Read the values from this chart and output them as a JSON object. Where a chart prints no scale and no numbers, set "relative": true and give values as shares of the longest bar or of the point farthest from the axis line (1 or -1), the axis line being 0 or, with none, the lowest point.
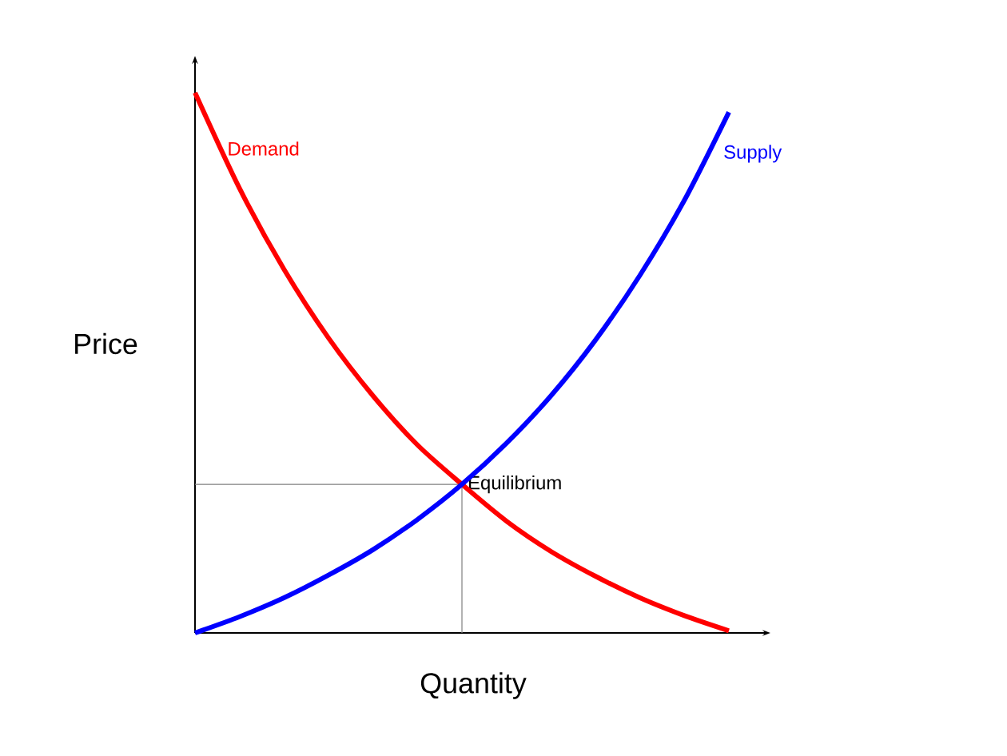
{
  "chart_data": {
    "type": "line",
    "relative": true,
    "xlabel": "Quantity",
    "ylabel": "Price",
    "categories": [
      null,
      null,
      null,
      null,
      null,
      null,
      null,
      null,
      null,
      null,
      null,
      null,
      null
    ],
    "series": [
      {
        "name": "Demand",
        "color": "#ff0000",
        "values": [
          1,
          0.823,
          0.673,
          0.546,
          0.439,
          0.348,
          0.275,
          0.207,
          0.151,
          0.105,
          0.065,
          0.032,
          0.004
        ]
      },
      {
        "name": "Supply",
        "color": "#0000ff",
        "values": [
          0,
          0.03,
          0.065,
          0.107,
          0.154,
          0.21,
          0.275,
          0.351,
          0.439,
          0.542,
          0.662,
          0.801,
          0.964
        ]
      }
    ],
    "ref_lines": [
      {
        "axis": "y",
        "value": 0.275,
        "color": "#808080"
      }
    ],
    "annotations": [
      "Equilibrium"
    ]
  }
}
